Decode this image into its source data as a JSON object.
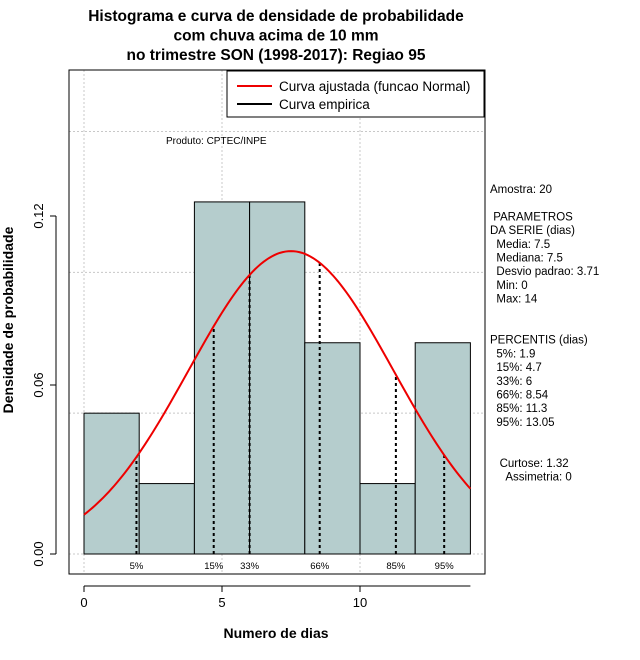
{
  "chart_data": {
    "type": "bar",
    "title_lines": [
      "Histograma e curva de densidade de probabilidade",
      "com chuva acima de 10 mm",
      "no trimestre SON (1998-2017): Regiao 95"
    ],
    "xlabel": "Numero de dias",
    "ylabel": "Densidade de probabilidade",
    "xlim": [
      -0.5,
      14.5
    ],
    "ylim": [
      0,
      0.17
    ],
    "x_ticks": [
      0,
      5,
      10
    ],
    "y_ticks": [
      0.0,
      0.06,
      0.12
    ],
    "y_tick_labels": [
      "0.00",
      "0.06",
      "0.12"
    ],
    "grid": true,
    "bins": [
      {
        "x0": 0,
        "x1": 2,
        "density": 0.05
      },
      {
        "x0": 2,
        "x1": 4,
        "density": 0.025
      },
      {
        "x0": 4,
        "x1": 6,
        "density": 0.125
      },
      {
        "x0": 6,
        "x1": 8,
        "density": 0.125
      },
      {
        "x0": 8,
        "x1": 10,
        "density": 0.075
      },
      {
        "x0": 10,
        "x1": 12,
        "density": 0.025
      },
      {
        "x0": 12,
        "x1": 14,
        "density": 0.075
      }
    ],
    "bar_color": "#b5cdcd",
    "normal_fit": {
      "mean": 7.5,
      "sd": 3.71,
      "color": "#ee0000"
    },
    "percentile_markers": [
      {
        "label": "5%",
        "x": 1.9
      },
      {
        "label": "15%",
        "x": 4.7
      },
      {
        "label": "33%",
        "x": 6
      },
      {
        "label": "66%",
        "x": 8.54
      },
      {
        "label": "85%",
        "x": 11.3
      },
      {
        "label": "95%",
        "x": 13.05
      }
    ],
    "legend": {
      "placement": "top-right",
      "entries": [
        {
          "label": "Curva ajustada (funcao Normal)",
          "color": "#ee0000"
        },
        {
          "label": "Curva empirica",
          "color": "#000000"
        }
      ]
    },
    "annotation": "Produto: CPTEC/INPE"
  },
  "stats_panel": {
    "lines": [
      "Amostra: 20",
      "",
      " PARAMETROS",
      "DA SERIE (dias)",
      "  Media: 7.5",
      "  Mediana: 7.5",
      "  Desvio padrao: 3.71",
      "  Min: 0",
      "  Max: 14",
      "",
      "",
      "PERCENTIS (dias)",
      "  5%: 1.9",
      "  15%: 4.7",
      "  33%: 6",
      "  66%: 8.54",
      "  85%: 11.3",
      "  95%: 13.05",
      "",
      "",
      "   Curtose: 1.32",
      "     Assimetria: 0"
    ]
  }
}
